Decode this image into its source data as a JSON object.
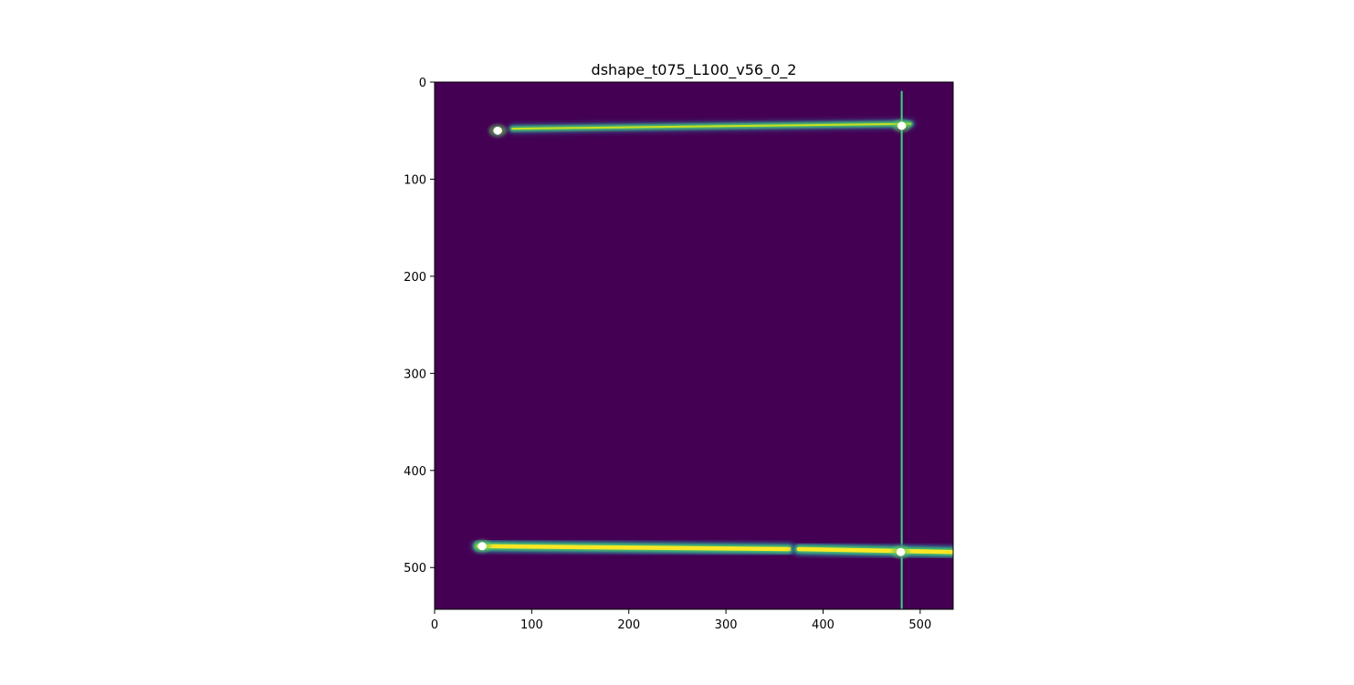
{
  "chart_data": {
    "type": "heatmap",
    "title": "dshape_t075_L100_v56_0_2",
    "xlabel": "",
    "ylabel": "",
    "xlim": [
      0,
      534
    ],
    "ylim": [
      543,
      0
    ],
    "y_axis_inverted": true,
    "grid": false,
    "colormap": "viridis",
    "x_ticks": [
      "0",
      "100",
      "200",
      "300",
      "400",
      "500"
    ],
    "y_ticks": [
      "0",
      "100",
      "200",
      "300",
      "400",
      "500"
    ],
    "background_value_color": "#440154",
    "ridges": [
      {
        "orientation": "horizontal",
        "x_start": 80,
        "x_end": 490,
        "y_start": 48,
        "y_end": 43,
        "intensity": "medium"
      },
      {
        "orientation": "vertical",
        "x": 481,
        "y_start": 10,
        "y_end": 543,
        "intensity": "low"
      },
      {
        "orientation": "horizontal",
        "x_start": 45,
        "x_end": 365,
        "y_start": 478,
        "y_end": 481,
        "intensity": "high"
      },
      {
        "orientation": "horizontal",
        "x_start": 375,
        "x_end": 534,
        "y_start": 481,
        "y_end": 484,
        "intensity": "high"
      }
    ],
    "markers": [
      {
        "x": 65,
        "y": 50
      },
      {
        "x": 481,
        "y": 45
      },
      {
        "x": 49,
        "y": 478
      },
      {
        "x": 480,
        "y": 484
      }
    ],
    "marker_color": "#ffffff"
  }
}
